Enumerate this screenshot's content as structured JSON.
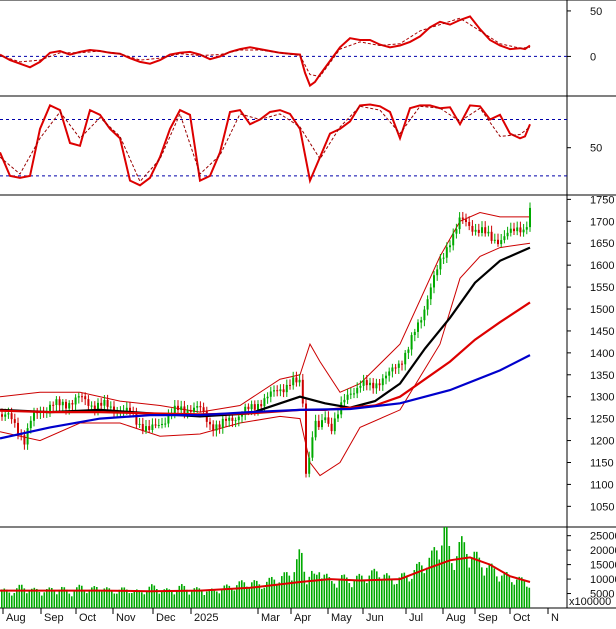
{
  "chart_data": [
    {
      "type": "line",
      "panel": "macd",
      "series": [
        {
          "role": "main",
          "color": "#dd0000",
          "style": "solid",
          "x": [
            0,
            10,
            20,
            30,
            40,
            50,
            60,
            70,
            80,
            90,
            100,
            110,
            120,
            130,
            140,
            150,
            160,
            170,
            180,
            190,
            200,
            210,
            220,
            230,
            240,
            250,
            260,
            270,
            280,
            290,
            300,
            305,
            310,
            315,
            320,
            330,
            340,
            350,
            360,
            370,
            380,
            390,
            400,
            410,
            420,
            430,
            440,
            450,
            460,
            470,
            480,
            490,
            500,
            510,
            520,
            525,
            530
          ],
          "y": [
            2,
            -4,
            -8,
            -12,
            -6,
            4,
            6,
            2,
            5,
            7,
            6,
            4,
            3,
            -2,
            -6,
            -8,
            -4,
            2,
            4,
            5,
            2,
            -3,
            0,
            5,
            8,
            10,
            8,
            6,
            4,
            3,
            2,
            -18,
            -32,
            -28,
            -20,
            -5,
            10,
            20,
            18,
            18,
            13,
            10,
            12,
            16,
            22,
            32,
            38,
            35,
            40,
            44,
            30,
            18,
            12,
            8,
            9,
            8,
            12
          ]
        },
        {
          "role": "signal",
          "color": "#aa0000",
          "style": "dashed",
          "x": [
            0,
            20,
            40,
            60,
            80,
            100,
            120,
            140,
            160,
            180,
            200,
            220,
            240,
            260,
            280,
            300,
            310,
            320,
            340,
            360,
            380,
            400,
            420,
            440,
            460,
            480,
            500,
            520,
            530
          ],
          "y": [
            1,
            -6,
            -4,
            4,
            4,
            6,
            3,
            -4,
            -2,
            3,
            1,
            2,
            7,
            7,
            4,
            1,
            -20,
            -22,
            8,
            16,
            12,
            14,
            28,
            35,
            42,
            28,
            14,
            9,
            10
          ]
        }
      ],
      "ylim": [
        -38,
        62
      ],
      "y_ticks": [
        50,
        0
      ],
      "reference_lines": [
        {
          "y": 0,
          "color": "#0000aa",
          "style": "dotted"
        }
      ]
    },
    {
      "type": "line",
      "panel": "stochastic",
      "series": [
        {
          "role": "main",
          "color": "#dd0000",
          "style": "solid",
          "x": [
            0,
            10,
            20,
            30,
            40,
            50,
            60,
            70,
            80,
            90,
            100,
            110,
            120,
            130,
            140,
            150,
            160,
            170,
            180,
            190,
            200,
            210,
            220,
            230,
            240,
            250,
            260,
            270,
            280,
            290,
            300,
            310,
            320,
            330,
            340,
            350,
            360,
            370,
            380,
            390,
            400,
            410,
            420,
            430,
            440,
            450,
            460,
            470,
            480,
            490,
            500,
            510,
            520,
            525,
            530
          ],
          "y": [
            45,
            20,
            18,
            20,
            70,
            95,
            90,
            55,
            52,
            90,
            85,
            70,
            60,
            15,
            10,
            18,
            40,
            70,
            90,
            85,
            15,
            20,
            45,
            88,
            90,
            75,
            80,
            88,
            90,
            86,
            70,
            15,
            40,
            65,
            70,
            78,
            95,
            96,
            94,
            88,
            60,
            92,
            95,
            95,
            92,
            93,
            75,
            95,
            94,
            80,
            85,
            65,
            60,
            62,
            75
          ],
          "label_prefix": ""
        },
        {
          "role": "signal",
          "color": "#990000",
          "style": "dashed",
          "x": [
            0,
            20,
            40,
            60,
            80,
            100,
            120,
            140,
            160,
            180,
            200,
            220,
            240,
            260,
            280,
            300,
            320,
            340,
            360,
            380,
            400,
            420,
            440,
            460,
            480,
            500,
            520,
            530
          ],
          "y": [
            40,
            22,
            60,
            88,
            60,
            82,
            62,
            14,
            38,
            86,
            22,
            42,
            86,
            80,
            86,
            72,
            38,
            72,
            94,
            90,
            65,
            94,
            92,
            78,
            92,
            62,
            64,
            72
          ]
        }
      ],
      "ylim": [
        5,
        105
      ],
      "y_ticks": [
        50
      ],
      "reference_lines": [
        {
          "y": 80,
          "color": "#0000aa",
          "style": "dotted"
        },
        {
          "y": 20,
          "color": "#0000aa",
          "style": "dotted"
        }
      ]
    },
    {
      "type": "candlestick",
      "panel": "price",
      "ylim": [
        1012,
        1760
      ],
      "y_ticks": [
        1750,
        1700,
        1650,
        1600,
        1550,
        1500,
        1450,
        1400,
        1350,
        1300,
        1250,
        1200,
        1150,
        1100,
        1050
      ],
      "close_path": {
        "x": [
          0,
          10,
          20,
          25,
          30,
          40,
          50,
          60,
          70,
          80,
          90,
          100,
          110,
          120,
          130,
          140,
          150,
          160,
          170,
          180,
          190,
          200,
          210,
          220,
          230,
          240,
          250,
          260,
          270,
          280,
          290,
          300,
          303,
          306,
          310,
          315,
          320,
          325,
          330,
          340,
          350,
          360,
          370,
          380,
          390,
          400,
          410,
          420,
          430,
          440,
          450,
          460,
          470,
          480,
          490,
          500,
          510,
          520,
          525,
          530
        ],
        "y": [
          1260,
          1250,
          1220,
          1200,
          1240,
          1270,
          1280,
          1280,
          1290,
          1295,
          1285,
          1280,
          1275,
          1270,
          1260,
          1240,
          1220,
          1240,
          1260,
          1270,
          1275,
          1270,
          1240,
          1230,
          1250,
          1260,
          1270,
          1290,
          1300,
          1320,
          1330,
          1330,
          1290,
          1130,
          1180,
          1240,
          1220,
          1260,
          1230,
          1270,
          1310,
          1330,
          1320,
          1340,
          1350,
          1380,
          1420,
          1470,
          1550,
          1600,
          1660,
          1700,
          1690,
          1680,
          1660,
          1660,
          1670,
          1690,
          1680,
          1720
        ]
      },
      "candle_colors": {
        "up": "#00aa00",
        "down": "#cc0000"
      },
      "moving_averages": [
        {
          "name": "",
          "color": "#000000",
          "x": [
            0,
            50,
            100,
            150,
            200,
            250,
            300,
            325,
            350,
            375,
            400,
            425,
            450,
            475,
            500,
            530
          ],
          "y": [
            1270,
            1265,
            1270,
            1262,
            1255,
            1262,
            1300,
            1285,
            1275,
            1290,
            1330,
            1410,
            1480,
            1560,
            1610,
            1640
          ]
        },
        {
          "name": "",
          "color": "#dd0000",
          "x": [
            0,
            50,
            100,
            150,
            200,
            250,
            300,
            325,
            350,
            375,
            400,
            425,
            450,
            475,
            500,
            530
          ],
          "y": [
            1268,
            1265,
            1265,
            1262,
            1260,
            1262,
            1270,
            1270,
            1275,
            1280,
            1300,
            1340,
            1380,
            1430,
            1470,
            1515
          ]
        },
        {
          "name": "",
          "color": "#0000cc",
          "x": [
            0,
            50,
            100,
            150,
            200,
            250,
            300,
            350,
            400,
            450,
            500,
            530
          ],
          "y": [
            1205,
            1230,
            1250,
            1258,
            1258,
            1265,
            1270,
            1272,
            1285,
            1315,
            1360,
            1395
          ]
        }
      ],
      "bollinger_bands": {
        "color": "#cc0000",
        "upper": {
          "x": [
            0,
            40,
            80,
            120,
            160,
            200,
            240,
            280,
            300,
            310,
            320,
            340,
            360,
            400,
            440,
            460,
            480,
            500,
            530
          ],
          "y": [
            1300,
            1310,
            1310,
            1290,
            1280,
            1265,
            1280,
            1340,
            1350,
            1420,
            1380,
            1310,
            1330,
            1420,
            1620,
            1700,
            1720,
            1710,
            1710
          ]
        },
        "lower": {
          "x": [
            0,
            40,
            80,
            120,
            160,
            200,
            240,
            280,
            300,
            310,
            320,
            340,
            360,
            400,
            440,
            460,
            480,
            500,
            530
          ],
          "y": [
            1220,
            1200,
            1240,
            1240,
            1210,
            1215,
            1240,
            1255,
            1250,
            1150,
            1120,
            1150,
            1230,
            1270,
            1420,
            1570,
            1620,
            1640,
            1650
          ]
        }
      }
    },
    {
      "type": "bar",
      "panel": "volume",
      "ylim": [
        0,
        28000
      ],
      "y_ticks": [
        25000,
        20000,
        15000,
        10000,
        5000
      ],
      "scale_note": "x100000",
      "bar_color": "#00aa00",
      "bars": {
        "x": [
          0,
          10,
          20,
          30,
          40,
          50,
          60,
          70,
          80,
          90,
          100,
          110,
          120,
          130,
          140,
          150,
          160,
          170,
          180,
          190,
          200,
          210,
          220,
          230,
          240,
          250,
          260,
          270,
          280,
          290,
          300,
          305,
          310,
          315,
          320,
          325,
          330,
          340,
          350,
          360,
          370,
          380,
          390,
          400,
          410,
          420,
          430,
          440,
          445,
          450,
          460,
          470,
          480,
          490,
          500,
          510,
          520,
          530
        ],
        "y": [
          6000,
          5000,
          7000,
          6000,
          5500,
          6000,
          6500,
          5000,
          7000,
          6000,
          7000,
          5500,
          6000,
          6000,
          5000,
          7000,
          6000,
          5500,
          7000,
          6000,
          6000,
          5500,
          6500,
          7000,
          8000,
          8500,
          7500,
          9000,
          10000,
          11000,
          18000,
          10000,
          12000,
          9000,
          14000,
          11000,
          8000,
          10000,
          9000,
          10000,
          11000,
          12000,
          9000,
          10000,
          11000,
          14000,
          16000,
          22000,
          27000,
          15000,
          21000,
          18000,
          15000,
          13000,
          11000,
          10000,
          9000,
          8000
        ]
      },
      "moving_average": {
        "color": "#dd0000",
        "x": [
          0,
          50,
          100,
          150,
          200,
          250,
          300,
          330,
          360,
          400,
          430,
          450,
          470,
          490,
          510,
          530
        ],
        "y": [
          6000,
          6000,
          6000,
          5800,
          6000,
          7000,
          9000,
          10000,
          9500,
          10000,
          14000,
          16500,
          17500,
          15000,
          11000,
          9000
        ]
      }
    }
  ],
  "x_axis": {
    "ticks": [
      "Aug",
      "Sep",
      "Oct",
      "Nov",
      "Dec",
      "2025",
      "Mar",
      "Apr",
      "May",
      "Jun",
      "Jul",
      "Aug",
      "Sep",
      "Oct",
      "N"
    ],
    "tick_positions": [
      15,
      53,
      88,
      125,
      165,
      203,
      270,
      303,
      340,
      375,
      418,
      455,
      487,
      522,
      560
    ]
  }
}
